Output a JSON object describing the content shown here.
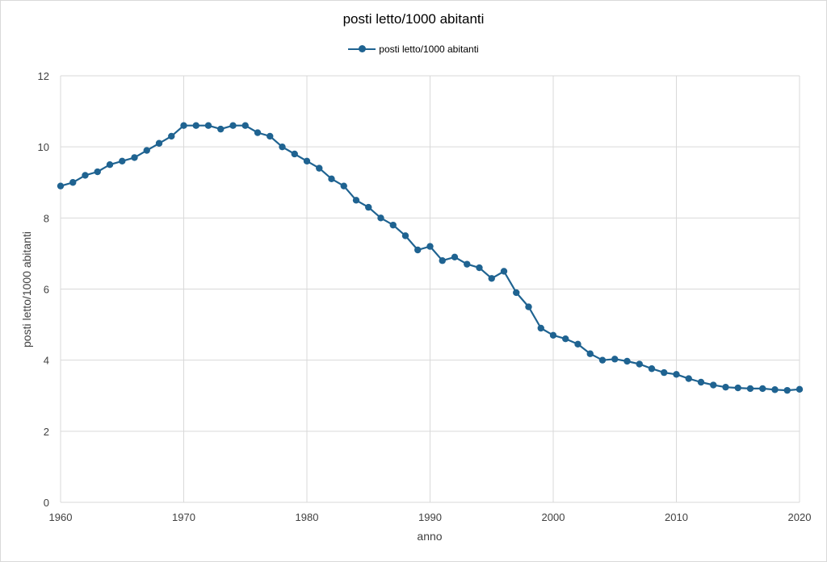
{
  "chart_data": {
    "type": "line",
    "title": "posti letto/1000 abitanti",
    "xlabel": "anno",
    "ylabel": "posti letto/1000 abitanti",
    "xlim": [
      1960,
      2020
    ],
    "ylim": [
      0,
      12
    ],
    "x_ticks": [
      "1960",
      "1970",
      "1980",
      "1990",
      "2000",
      "2010",
      "2020"
    ],
    "y_ticks": [
      "0",
      "2",
      "4",
      "6",
      "8",
      "10",
      "12"
    ],
    "grid": true,
    "legend_position": "top",
    "series": [
      {
        "name": "posti letto/1000 abitanti",
        "color": "#1f6391",
        "x": [
          1960,
          1961,
          1962,
          1963,
          1964,
          1965,
          1966,
          1967,
          1968,
          1969,
          1970,
          1971,
          1972,
          1973,
          1974,
          1975,
          1976,
          1977,
          1978,
          1979,
          1980,
          1981,
          1982,
          1983,
          1984,
          1985,
          1986,
          1987,
          1988,
          1989,
          1990,
          1991,
          1992,
          1993,
          1994,
          1995,
          1996,
          1997,
          1998,
          1999,
          2000,
          2001,
          2002,
          2003,
          2004,
          2005,
          2006,
          2007,
          2008,
          2009,
          2010,
          2011,
          2012,
          2013,
          2014,
          2015,
          2016,
          2017,
          2018,
          2019,
          2020
        ],
        "y": [
          8.9,
          9.0,
          9.2,
          9.3,
          9.5,
          9.6,
          9.7,
          9.9,
          10.1,
          10.3,
          10.6,
          10.6,
          10.6,
          10.5,
          10.6,
          10.6,
          10.4,
          10.3,
          10.0,
          9.8,
          9.6,
          9.4,
          9.1,
          8.9,
          8.5,
          8.3,
          8.0,
          7.8,
          7.5,
          7.1,
          7.2,
          6.8,
          6.9,
          6.7,
          6.6,
          6.3,
          6.5,
          5.9,
          5.5,
          4.9,
          4.7,
          4.6,
          4.45,
          4.18,
          4.0,
          4.03,
          3.97,
          3.89,
          3.76,
          3.65,
          3.6,
          3.48,
          3.38,
          3.3,
          3.24,
          3.22,
          3.2,
          3.2,
          3.17,
          3.15,
          3.18
        ]
      }
    ]
  }
}
